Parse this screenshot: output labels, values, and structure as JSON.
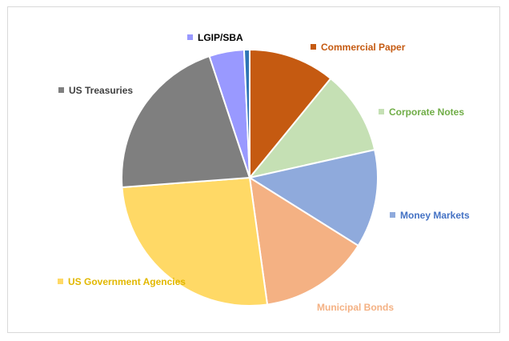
{
  "chart_data": {
    "type": "pie",
    "title": "",
    "slices": [
      {
        "label": "Commercial Paper",
        "value": 10.9,
        "color": "#c55a11"
      },
      {
        "label": "Corporate Notes",
        "value": 10.6,
        "color": "#c5e0b4"
      },
      {
        "label": "Money Markets",
        "value": 12.4,
        "color": "#8faadc"
      },
      {
        "label": "Municipal Bonds",
        "value": 13.9,
        "color": "#f4b183"
      },
      {
        "label": "US Government Agencies",
        "value": 26.0,
        "color": "#ffd966"
      },
      {
        "label": "US Treasuries",
        "value": 21.1,
        "color": "#7f7f7f"
      },
      {
        "label": "LGIP/SBA",
        "value": 4.4,
        "color": "#9999ff"
      },
      {
        "label": "",
        "value": 0.7,
        "color": "#2e75b6"
      }
    ],
    "label_colors": {
      "Commercial Paper": "#c55a11",
      "Corporate Notes": "#70ad47",
      "Money Markets": "#4472c4",
      "Municipal Bonds": "#f4b183",
      "US Government Agencies": "#e2b800",
      "US Treasuries": "#404040",
      "LGIP/SBA": "#000000"
    }
  }
}
